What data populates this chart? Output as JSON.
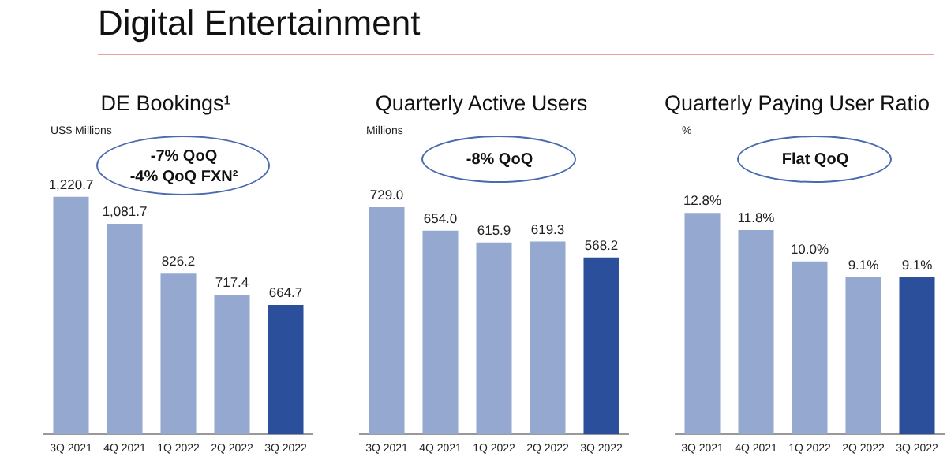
{
  "chart_data": [
    {
      "type": "other",
      "title": "Digital Entertainment"
    },
    {
      "type": "bar",
      "title": "DE Bookings¹",
      "ylabel": "US$ Millions",
      "annotations": [
        "-7% QoQ",
        "-4% QoQ FXN²"
      ],
      "categories": [
        "3Q 2021",
        "4Q 2021",
        "1Q 2022",
        "2Q 2022",
        "3Q 2022"
      ],
      "values": [
        1220.7,
        1081.7,
        826.2,
        717.4,
        664.7
      ],
      "value_labels": [
        "1,220.7",
        "1,081.7",
        "826.2",
        "717.4",
        "664.7"
      ],
      "colors": [
        "#94a8d0",
        "#94a8d0",
        "#94a8d0",
        "#94a8d0",
        "#2b4f9a"
      ]
    },
    {
      "type": "bar",
      "title": "Quarterly Active Users",
      "ylabel": "Millions",
      "annotations": [
        "-8% QoQ"
      ],
      "categories": [
        "3Q 2021",
        "4Q 2021",
        "1Q 2022",
        "2Q 2022",
        "3Q 2022"
      ],
      "values": [
        729.0,
        654.0,
        615.9,
        619.3,
        568.2
      ],
      "value_labels": [
        "729.0",
        "654.0",
        "615.9",
        "619.3",
        "568.2"
      ],
      "colors": [
        "#94a8d0",
        "#94a8d0",
        "#94a8d0",
        "#94a8d0",
        "#2b4f9a"
      ]
    },
    {
      "type": "bar",
      "title": "Quarterly Paying User Ratio",
      "ylabel": "%",
      "annotations": [
        "Flat QoQ"
      ],
      "categories": [
        "3Q 2021",
        "4Q 2021",
        "1Q 2022",
        "2Q 2022",
        "3Q 2022"
      ],
      "values": [
        12.8,
        11.8,
        10.0,
        9.1,
        9.1
      ],
      "value_labels": [
        "12.8%",
        "11.8%",
        "10.0%",
        "9.1%",
        "9.1%"
      ],
      "colors": [
        "#94a8d0",
        "#94a8d0",
        "#94a8d0",
        "#94a8d0",
        "#2b4f9a"
      ]
    }
  ]
}
